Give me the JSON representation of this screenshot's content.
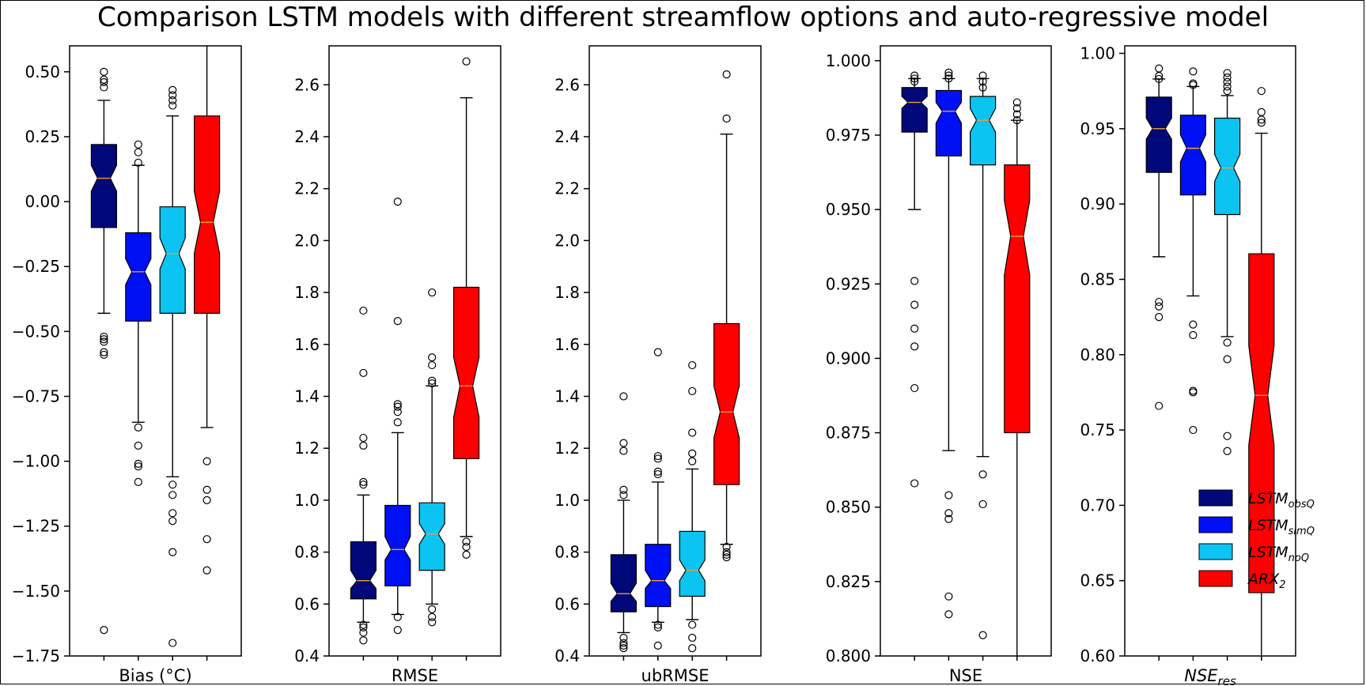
{
  "title": "Comparison LSTM models with different streamflow options and auto-regressive model",
  "legend": {
    "placement": "lower-right of last panel",
    "entries": [
      {
        "base": "LSTM",
        "sub": "obsQ",
        "color": "#00087a"
      },
      {
        "base": "LSTM",
        "sub": "simQ",
        "color": "#0010f5"
      },
      {
        "base": "LSTM",
        "sub": "noQ",
        "color": "#0bc4f2"
      },
      {
        "base": "ARX",
        "sub": "2",
        "color": "#ff0000"
      }
    ]
  },
  "chart_data": [
    {
      "type": "box",
      "notched": true,
      "xlabel": "Bias (°C)",
      "ylim": [
        -1.75,
        0.6
      ],
      "yticks": [
        0.5,
        0.25,
        0.0,
        -0.25,
        -0.5,
        -0.75,
        -1.0,
        -1.25,
        -1.5,
        -1.75
      ],
      "ytick_labels": [
        "0.50",
        "0.25",
        "0.00",
        "−0.25",
        "−0.50",
        "−0.75",
        "−1.00",
        "−1.25",
        "−1.50",
        "−1.75"
      ],
      "series": [
        {
          "name": "LSTM obsQ",
          "q1": -0.1,
          "median": 0.09,
          "q3": 0.22,
          "notch": [
            0.04,
            0.14
          ],
          "whisker_low": -0.43,
          "whisker_high": 0.39,
          "outliers": [
            0.5,
            0.47,
            0.46,
            0.44,
            -0.52,
            -0.53,
            -0.54,
            -0.58,
            -0.59,
            -1.65
          ]
        },
        {
          "name": "LSTM simQ",
          "q1": -0.46,
          "median": -0.27,
          "q3": -0.12,
          "notch": [
            -0.32,
            -0.22
          ],
          "whisker_low": -0.85,
          "whisker_high": 0.14,
          "outliers": [
            0.22,
            0.19,
            0.15,
            -0.87,
            -0.94,
            -1.01,
            -1.02,
            -1.08
          ]
        },
        {
          "name": "LSTM noQ",
          "q1": -0.43,
          "median": -0.2,
          "q3": -0.02,
          "notch": [
            -0.26,
            -0.14
          ],
          "whisker_low": -1.06,
          "whisker_high": 0.33,
          "outliers": [
            0.43,
            0.41,
            0.39,
            0.37,
            -1.09,
            -1.13,
            -1.2,
            -1.23,
            -1.35,
            -1.7
          ]
        },
        {
          "name": "ARX 2",
          "q1": -0.43,
          "median": -0.08,
          "q3": 0.33,
          "notch": [
            -0.2,
            0.04
          ],
          "whisker_low": -0.87,
          "whisker_high": 0.6,
          "outliers": [
            -1.0,
            -1.11,
            -1.15,
            -1.3,
            -1.42
          ]
        }
      ]
    },
    {
      "type": "box",
      "notched": true,
      "xlabel": "RMSE",
      "ylim": [
        0.4,
        2.75
      ],
      "yticks": [
        0.4,
        0.6,
        0.8,
        1.0,
        1.2,
        1.4,
        1.6,
        1.8,
        2.0,
        2.2,
        2.4,
        2.6
      ],
      "ytick_labels": [
        "0.4",
        "0.6",
        "0.8",
        "1.0",
        "1.2",
        "1.4",
        "1.6",
        "1.8",
        "2.0",
        "2.2",
        "2.4",
        "2.6"
      ],
      "series": [
        {
          "name": "LSTM obsQ",
          "q1": 0.62,
          "median": 0.69,
          "q3": 0.84,
          "notch": [
            0.66,
            0.73
          ],
          "whisker_low": 0.53,
          "whisker_high": 1.02,
          "outliers": [
            1.73,
            1.49,
            1.24,
            1.21,
            1.07,
            1.06,
            0.52,
            0.51,
            0.49,
            0.46
          ]
        },
        {
          "name": "LSTM simQ",
          "q1": 0.67,
          "median": 0.81,
          "q3": 0.98,
          "notch": [
            0.77,
            0.86
          ],
          "whisker_low": 0.56,
          "whisker_high": 1.26,
          "outliers": [
            2.15,
            1.69,
            1.37,
            1.36,
            1.34,
            1.3,
            0.55,
            0.5
          ]
        },
        {
          "name": "LSTM noQ",
          "q1": 0.73,
          "median": 0.87,
          "q3": 0.99,
          "notch": [
            0.83,
            0.91
          ],
          "whisker_low": 0.6,
          "whisker_high": 1.44,
          "outliers": [
            1.8,
            1.55,
            1.52,
            1.46,
            1.45,
            0.58,
            0.55,
            0.53
          ]
        },
        {
          "name": "ARX 2",
          "q1": 1.16,
          "median": 1.44,
          "q3": 1.82,
          "notch": [
            1.32,
            1.55
          ],
          "whisker_low": 0.86,
          "whisker_high": 2.55,
          "outliers": [
            2.69,
            0.84,
            0.82,
            0.79
          ]
        }
      ]
    },
    {
      "type": "box",
      "notched": true,
      "xlabel": "ubRMSE",
      "ylim": [
        0.4,
        2.75
      ],
      "yticks": [
        0.4,
        0.6,
        0.8,
        1.0,
        1.2,
        1.4,
        1.6,
        1.8,
        2.0,
        2.2,
        2.4,
        2.6
      ],
      "ytick_labels": [
        "0.4",
        "0.6",
        "0.8",
        "1.0",
        "1.2",
        "1.4",
        "1.6",
        "1.8",
        "2.0",
        "2.2",
        "2.4",
        "2.6"
      ],
      "series": [
        {
          "name": "LSTM obsQ",
          "q1": 0.57,
          "median": 0.64,
          "q3": 0.79,
          "notch": [
            0.61,
            0.68
          ],
          "whisker_low": 0.49,
          "whisker_high": 1.0,
          "outliers": [
            1.4,
            1.22,
            1.19,
            1.04,
            1.02,
            0.47,
            0.45,
            0.44,
            0.43
          ]
        },
        {
          "name": "LSTM simQ",
          "q1": 0.59,
          "median": 0.69,
          "q3": 0.83,
          "notch": [
            0.66,
            0.73
          ],
          "whisker_low": 0.53,
          "whisker_high": 1.07,
          "outliers": [
            1.57,
            1.17,
            1.16,
            1.11,
            1.1,
            0.52,
            0.51,
            0.44
          ]
        },
        {
          "name": "LSTM noQ",
          "q1": 0.63,
          "median": 0.73,
          "q3": 0.88,
          "notch": [
            0.69,
            0.77
          ],
          "whisker_low": 0.54,
          "whisker_high": 1.12,
          "outliers": [
            1.52,
            1.42,
            1.26,
            1.18,
            1.15,
            0.52,
            0.47,
            0.43
          ]
        },
        {
          "name": "ARX 2",
          "q1": 1.06,
          "median": 1.34,
          "q3": 1.68,
          "notch": [
            1.24,
            1.44
          ],
          "whisker_low": 0.83,
          "whisker_high": 2.41,
          "outliers": [
            2.64,
            2.47,
            0.82,
            0.8,
            0.79,
            0.78
          ]
        }
      ]
    },
    {
      "type": "box",
      "notched": true,
      "xlabel": "NSE",
      "ylim": [
        0.8,
        1.005
      ],
      "yticks": [
        0.8,
        0.825,
        0.85,
        0.875,
        0.9,
        0.925,
        0.95,
        0.975,
        1.0
      ],
      "ytick_labels": [
        "0.800",
        "0.825",
        "0.850",
        "0.875",
        "0.900",
        "0.925",
        "0.950",
        "0.975",
        "1.000"
      ],
      "series": [
        {
          "name": "LSTM obsQ",
          "q1": 0.976,
          "median": 0.986,
          "q3": 0.991,
          "notch": [
            0.984,
            0.988
          ],
          "whisker_low": 0.95,
          "whisker_high": 0.994,
          "outliers": [
            0.995,
            0.994,
            0.993,
            0.926,
            0.918,
            0.91,
            0.904,
            0.89,
            0.858
          ]
        },
        {
          "name": "LSTM simQ",
          "q1": 0.968,
          "median": 0.983,
          "q3": 0.99,
          "notch": [
            0.979,
            0.986
          ],
          "whisker_low": 0.869,
          "whisker_high": 0.994,
          "outliers": [
            0.996,
            0.995,
            0.994,
            0.854,
            0.848,
            0.846,
            0.82,
            0.814
          ]
        },
        {
          "name": "LSTM noQ",
          "q1": 0.965,
          "median": 0.98,
          "q3": 0.988,
          "notch": [
            0.976,
            0.984
          ],
          "whisker_low": 0.867,
          "whisker_high": 0.994,
          "outliers": [
            0.995,
            0.993,
            0.991,
            0.861,
            0.851,
            0.807
          ]
        },
        {
          "name": "ARX 2",
          "q1": 0.875,
          "median": 0.941,
          "q3": 0.965,
          "notch": [
            0.928,
            0.953
          ],
          "whisker_low": 0.8,
          "whisker_high": 0.98,
          "outliers": [
            0.986,
            0.984,
            0.982,
            0.98
          ]
        }
      ]
    },
    {
      "type": "box",
      "notched": true,
      "xlabel": "NSE",
      "xlabel_sub": "res",
      "ylim": [
        0.6,
        1.005
      ],
      "yticks": [
        0.6,
        0.65,
        0.7,
        0.75,
        0.8,
        0.85,
        0.9,
        0.95,
        1.0
      ],
      "ytick_labels": [
        "0.60",
        "0.65",
        "0.70",
        "0.75",
        "0.80",
        "0.85",
        "0.90",
        "0.95",
        "1.00"
      ],
      "series": [
        {
          "name": "LSTM obsQ",
          "q1": 0.921,
          "median": 0.95,
          "q3": 0.971,
          "notch": [
            0.943,
            0.957
          ],
          "whisker_low": 0.865,
          "whisker_high": 0.983,
          "outliers": [
            0.99,
            0.985,
            0.983,
            0.835,
            0.832,
            0.825,
            0.766
          ]
        },
        {
          "name": "LSTM simQ",
          "q1": 0.906,
          "median": 0.937,
          "q3": 0.959,
          "notch": [
            0.928,
            0.946
          ],
          "whisker_low": 0.839,
          "whisker_high": 0.978,
          "outliers": [
            0.988,
            0.98,
            0.979,
            0.82,
            0.813,
            0.776,
            0.775,
            0.75
          ]
        },
        {
          "name": "LSTM noQ",
          "q1": 0.893,
          "median": 0.924,
          "q3": 0.957,
          "notch": [
            0.915,
            0.933
          ],
          "whisker_low": 0.812,
          "whisker_high": 0.972,
          "outliers": [
            0.987,
            0.984,
            0.981,
            0.978,
            0.975,
            0.808,
            0.797,
            0.746,
            0.736
          ]
        },
        {
          "name": "ARX 2",
          "q1": 0.642,
          "median": 0.773,
          "q3": 0.867,
          "notch": [
            0.74,
            0.806
          ],
          "whisker_low": 0.6,
          "whisker_high": 0.947,
          "outliers": [
            0.975,
            0.961,
            0.956,
            0.954
          ]
        }
      ]
    }
  ]
}
